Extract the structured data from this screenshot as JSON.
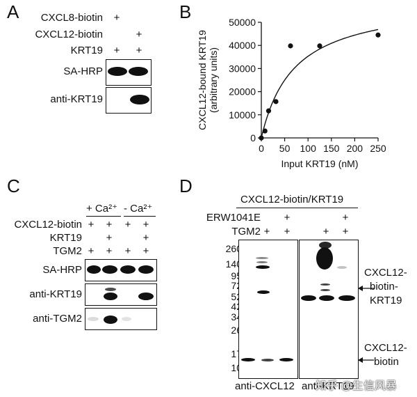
{
  "panels": {
    "A": "A",
    "B": "B",
    "C": "C",
    "D": "D"
  },
  "panelA": {
    "rows": [
      {
        "label": "CXCL8-biotin",
        "signs": [
          "+",
          ""
        ]
      },
      {
        "label": "CXCL12-biotin",
        "signs": [
          "",
          "+"
        ]
      },
      {
        "label": "KRT19",
        "signs": [
          "+",
          "+"
        ]
      }
    ],
    "blots": [
      "SA-HRP",
      "anti-KRT19"
    ]
  },
  "panelC": {
    "ca_plus": "+ Ca²⁺",
    "ca_minus": "- Ca²⁺",
    "rows": [
      {
        "label": "CXCL12-biotin",
        "signs": [
          "+",
          "+",
          "+",
          "+",
          "+"
        ]
      },
      {
        "label": "KRT19",
        "signs": [
          "",
          "+",
          "",
          "+",
          "+"
        ]
      },
      {
        "label": "TGM2",
        "signs": [
          "+",
          "+",
          "+",
          "+",
          "+"
        ]
      }
    ],
    "blots": [
      "SA-HRP",
      "anti-KRT19",
      "anti-TGM2"
    ]
  },
  "panelD": {
    "header": "CXCL12-biotin/KRT19",
    "rows": [
      {
        "label": "ERW1041E",
        "signs_left": [
          "",
          "",
          "+"
        ],
        "signs_right": [
          "",
          "",
          "+"
        ]
      },
      {
        "label": "TGM2",
        "signs_left": [
          "",
          "+",
          "+"
        ],
        "signs_right": [
          "",
          "+",
          "+"
        ]
      }
    ],
    "markers": [
      "260",
      "140",
      "95",
      "72",
      "52",
      "42",
      "34",
      "26",
      "17",
      "10"
    ],
    "arrows": [
      {
        "text": [
          "CXCL12-",
          "biotin-",
          "KRT19"
        ]
      },
      {
        "text": [
          "CXCL12-",
          "biotin"
        ]
      }
    ],
    "blots": [
      "anti-CXCL12",
      "anti-KRT19"
    ]
  },
  "watermark": "知乎 @生信风暴",
  "chart_data": {
    "type": "scatter",
    "title": "",
    "xlabel": "Input KRT19 (nM)",
    "ylabel": "CXCL12-bound KRT19",
    "ylabel_sub": "(arbitrary units)",
    "xlim": [
      0,
      250
    ],
    "ylim": [
      0,
      50000
    ],
    "xticks": [
      0,
      50,
      100,
      150,
      200,
      250
    ],
    "yticks": [
      0,
      10000,
      20000,
      30000,
      40000,
      50000
    ],
    "points": [
      {
        "x": 0,
        "y": 0
      },
      {
        "x": 7.8,
        "y": 3000
      },
      {
        "x": 15.6,
        "y": 11700
      },
      {
        "x": 31.25,
        "y": 15700
      },
      {
        "x": 62.5,
        "y": 39800
      },
      {
        "x": 125,
        "y": 39800
      },
      {
        "x": 250,
        "y": 44500
      }
    ],
    "fit": {
      "type": "hyperbolic",
      "bmax": 60000,
      "kd": 70
    }
  }
}
